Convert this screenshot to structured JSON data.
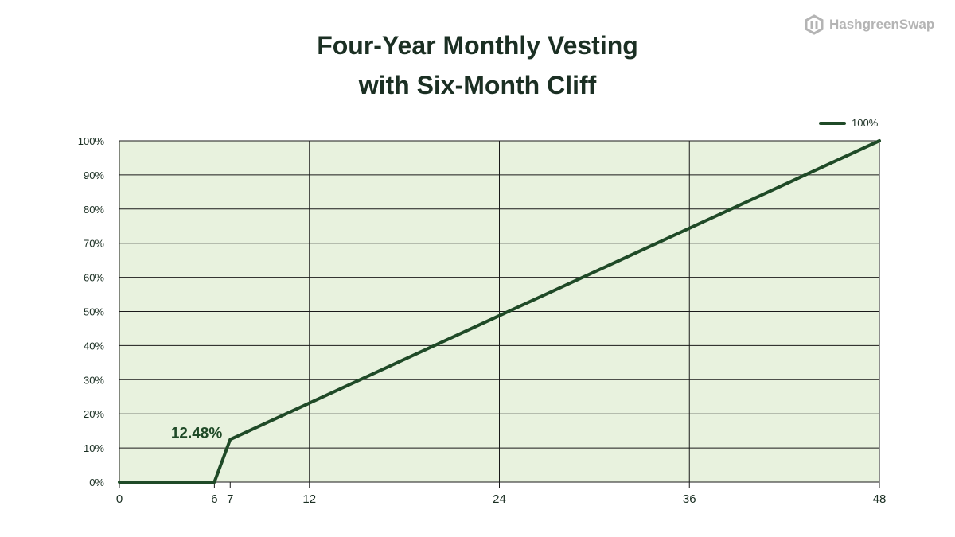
{
  "brand": {
    "name": "HashgreenSwap",
    "icon": "hexagon-logo-icon",
    "color": "#b4b4b4"
  },
  "chart_data": {
    "type": "line",
    "title_line1": "Four-Year Monthly Vesting",
    "title_line2": "with Six-Month Cliff",
    "xlabel": "",
    "ylabel": "",
    "xlim": [
      0,
      48
    ],
    "ylim": [
      0,
      100
    ],
    "x_ticks": [
      0,
      6,
      7,
      12,
      24,
      36,
      48
    ],
    "y_ticks": [
      "0%",
      "10%",
      "20%",
      "30%",
      "40%",
      "50%",
      "60%",
      "70%",
      "80%",
      "90%",
      "100%"
    ],
    "vertical_grid_at": [
      12,
      24,
      36
    ],
    "grid": true,
    "legend_position": "top-right",
    "series": [
      {
        "name": "100%",
        "color": "#1f4a27",
        "points": [
          [
            0,
            0
          ],
          [
            6,
            0
          ],
          [
            7,
            12.48
          ],
          [
            48,
            100
          ]
        ]
      }
    ],
    "annotations": [
      {
        "text": "12.48%",
        "x": 7,
        "y": 12.48
      }
    ],
    "colors": {
      "plot_background": "#e8f2de",
      "grid": "#1a1a1a",
      "text": "#1b2f23"
    }
  }
}
